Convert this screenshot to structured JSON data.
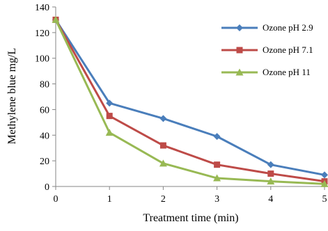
{
  "chart_data": {
    "type": "line",
    "xlabel": "Treatment time  (min)",
    "ylabel": "Methylene blue mg/L",
    "x": [
      0,
      1,
      2,
      3,
      4,
      5
    ],
    "xlim": [
      0,
      5
    ],
    "ylim": [
      0,
      140
    ],
    "xticks": [
      "0",
      "1",
      "2",
      "3",
      "4",
      "5"
    ],
    "yticks": [
      "0",
      "20",
      "40",
      "60",
      "80",
      "100",
      "120",
      "140"
    ],
    "grid": false,
    "legend_position": "top-right",
    "series": [
      {
        "name": "Ozone pH 2.9",
        "color": "#4a7ebb",
        "marker": "diamond",
        "values": [
          130,
          65,
          53,
          39,
          17,
          9
        ]
      },
      {
        "name": "Ozone pH 7.1",
        "color": "#be4b48",
        "marker": "square",
        "values": [
          130,
          55,
          32,
          17,
          10,
          4
        ]
      },
      {
        "name": "Ozone pH 11",
        "color": "#98b954",
        "marker": "triangle",
        "values": [
          130,
          42,
          18,
          6.5,
          4,
          2
        ]
      }
    ]
  }
}
